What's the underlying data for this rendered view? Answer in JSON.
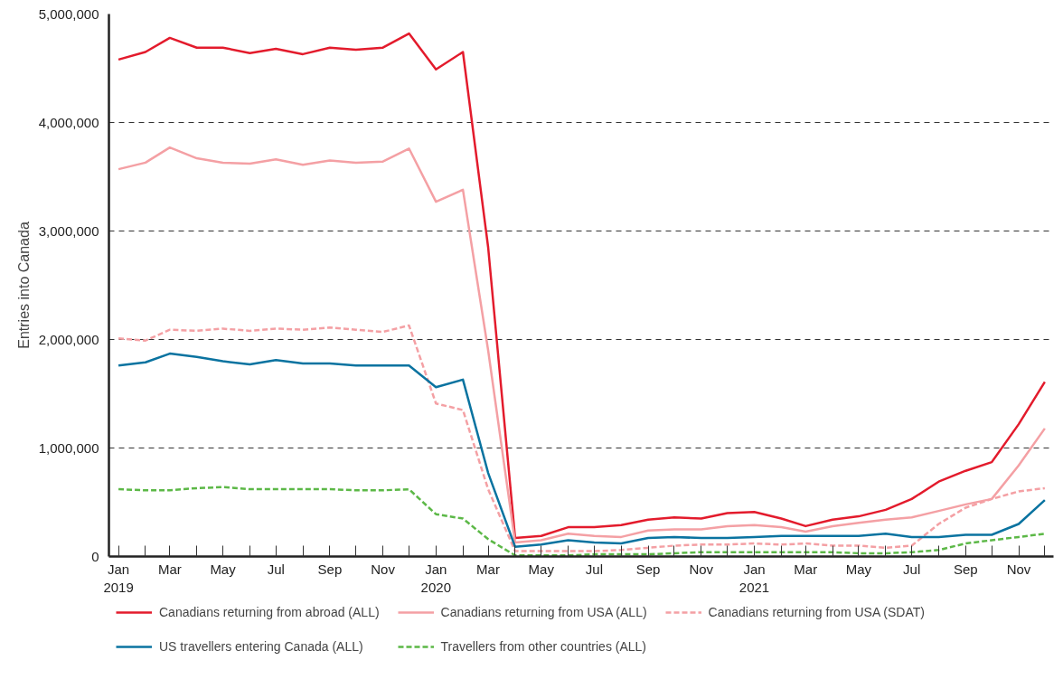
{
  "chart_data": {
    "type": "line",
    "ylabel": "Entries into Canada",
    "x": [
      "2019-01",
      "2019-02",
      "2019-03",
      "2019-04",
      "2019-05",
      "2019-06",
      "2019-07",
      "2019-08",
      "2019-09",
      "2019-10",
      "2019-11",
      "2019-12",
      "2020-01",
      "2020-02",
      "2020-03",
      "2020-04",
      "2020-05",
      "2020-06",
      "2020-07",
      "2020-08",
      "2020-09",
      "2020-10",
      "2020-11",
      "2020-12",
      "2021-01",
      "2021-02",
      "2021-03",
      "2021-04",
      "2021-05",
      "2021-06",
      "2021-07",
      "2021-08",
      "2021-09",
      "2021-10",
      "2021-11",
      "2021-12"
    ],
    "series": [
      {
        "name": "Canadians returning from abroad (ALL)",
        "color": "#e31b2c",
        "line_style": "solid",
        "values": [
          4580000,
          4650000,
          4780000,
          4690000,
          4690000,
          4640000,
          4680000,
          4630000,
          4690000,
          4670000,
          4690000,
          4820000,
          4490000,
          4650000,
          2850000,
          170000,
          190000,
          270000,
          270000,
          290000,
          340000,
          360000,
          350000,
          400000,
          410000,
          350000,
          280000,
          340000,
          370000,
          430000,
          530000,
          690000,
          790000,
          870000,
          1220000,
          1610000
        ]
      },
      {
        "name": "Canadians returning from USA (ALL)",
        "color": "#f4a0a4",
        "line_style": "solid",
        "values": [
          3570000,
          3630000,
          3770000,
          3670000,
          3630000,
          3620000,
          3660000,
          3610000,
          3650000,
          3630000,
          3640000,
          3760000,
          3270000,
          3380000,
          1900000,
          130000,
          150000,
          210000,
          190000,
          180000,
          240000,
          250000,
          250000,
          280000,
          290000,
          270000,
          230000,
          280000,
          310000,
          340000,
          360000,
          420000,
          480000,
          530000,
          840000,
          1180000
        ]
      },
      {
        "name": "Canadians returning from USA (SDAT)",
        "color": "#f4a0a4",
        "line_style": "dashed",
        "values": [
          2010000,
          1990000,
          2090000,
          2080000,
          2100000,
          2080000,
          2100000,
          2090000,
          2110000,
          2090000,
          2070000,
          2130000,
          1410000,
          1350000,
          620000,
          50000,
          50000,
          50000,
          50000,
          60000,
          80000,
          100000,
          110000,
          110000,
          120000,
          110000,
          120000,
          100000,
          100000,
          80000,
          100000,
          300000,
          450000,
          530000,
          600000,
          630000
        ]
      },
      {
        "name": "US travellers entering Canada (ALL)",
        "color": "#0a73a0",
        "line_style": "solid",
        "values": [
          1760000,
          1790000,
          1870000,
          1840000,
          1800000,
          1770000,
          1810000,
          1780000,
          1780000,
          1760000,
          1760000,
          1760000,
          1560000,
          1630000,
          770000,
          90000,
          110000,
          150000,
          130000,
          120000,
          170000,
          180000,
          170000,
          170000,
          180000,
          190000,
          190000,
          190000,
          190000,
          210000,
          180000,
          180000,
          200000,
          200000,
          300000,
          520000
        ]
      },
      {
        "name": "Travellers from other countries (ALL)",
        "color": "#5cb847",
        "line_style": "dashed",
        "values": [
          620000,
          610000,
          610000,
          630000,
          640000,
          620000,
          620000,
          620000,
          620000,
          610000,
          610000,
          620000,
          390000,
          350000,
          160000,
          10000,
          10000,
          10000,
          20000,
          20000,
          20000,
          30000,
          40000,
          40000,
          40000,
          40000,
          40000,
          40000,
          30000,
          30000,
          40000,
          60000,
          120000,
          150000,
          180000,
          210000
        ]
      }
    ],
    "xlim": [
      "2018-12-21",
      "2021-12-11"
    ],
    "xticks": [
      {
        "value": "2019-01",
        "label": "Jan\n2019"
      },
      {
        "value": "2019-02",
        "label": null
      },
      {
        "value": "2019-03",
        "label": "Mar"
      },
      {
        "value": "2019-04",
        "label": null
      },
      {
        "value": "2019-05",
        "label": "May"
      },
      {
        "value": "2019-06",
        "label": null
      },
      {
        "value": "2019-07",
        "label": "Jul"
      },
      {
        "value": "2019-08",
        "label": null
      },
      {
        "value": "2019-09",
        "label": "Sep"
      },
      {
        "value": "2019-10",
        "label": null
      },
      {
        "value": "2019-11",
        "label": "Nov"
      },
      {
        "value": "2019-12",
        "label": null
      },
      {
        "value": "2020-01",
        "label": "Jan\n2020"
      },
      {
        "value": "2020-02",
        "label": null
      },
      {
        "value": "2020-03",
        "label": "Mar"
      },
      {
        "value": "2020-04",
        "label": null
      },
      {
        "value": "2020-05",
        "label": "May"
      },
      {
        "value": "2020-06",
        "label": null
      },
      {
        "value": "2020-07",
        "label": "Jul"
      },
      {
        "value": "2020-08",
        "label": null
      },
      {
        "value": "2020-09",
        "label": "Sep"
      },
      {
        "value": "2020-10",
        "label": null
      },
      {
        "value": "2020-11",
        "label": "Nov"
      },
      {
        "value": "2020-12",
        "label": null
      },
      {
        "value": "2021-01",
        "label": "Jan\n2021"
      },
      {
        "value": "2021-02",
        "label": null
      },
      {
        "value": "2021-03",
        "label": "Mar"
      },
      {
        "value": "2021-04",
        "label": null
      },
      {
        "value": "2021-05",
        "label": "May"
      },
      {
        "value": "2021-06",
        "label": null
      },
      {
        "value": "2021-07",
        "label": "Jul"
      },
      {
        "value": "2021-08",
        "label": null
      },
      {
        "value": "2021-09",
        "label": "Sep"
      },
      {
        "value": "2021-10",
        "label": null
      },
      {
        "value": "2021-11",
        "label": "Nov"
      },
      {
        "value": "2021-12",
        "label": null
      }
    ],
    "ylim": [
      0,
      5000000
    ],
    "yticks": [
      {
        "value": 0,
        "label": "0"
      },
      {
        "value": 1000000,
        "label": "1,000,000"
      },
      {
        "value": 2000000,
        "label": "2,000,000"
      },
      {
        "value": 3000000,
        "label": "3,000,000"
      },
      {
        "value": 4000000,
        "label": "4,000,000"
      },
      {
        "value": 5000000,
        "label": "5,000,000"
      }
    ],
    "grid": "y",
    "legend": "bottom",
    "marker": "none"
  }
}
